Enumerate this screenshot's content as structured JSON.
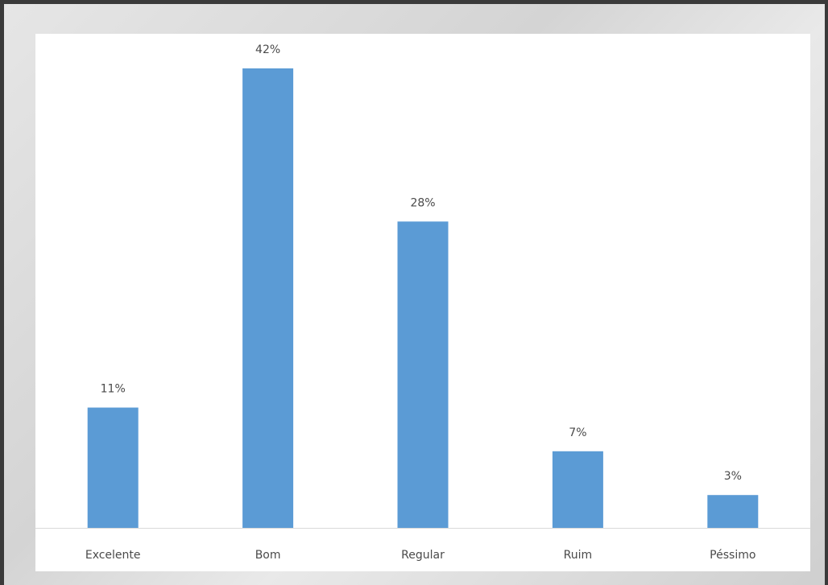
{
  "chart_data": {
    "type": "bar",
    "categories": [
      "Excelente",
      "Bom",
      "Regular",
      "Ruim",
      "Péssimo"
    ],
    "values": [
      11,
      42,
      28,
      7,
      3
    ],
    "value_labels": [
      "11%",
      "42%",
      "28%",
      "7%",
      "3%"
    ],
    "title": "",
    "xlabel": "",
    "ylabel": "",
    "ylim": [
      0,
      42
    ],
    "grid": false,
    "bar_color": "#5b9bd5",
    "axis_color": "#d9d9d9"
  }
}
